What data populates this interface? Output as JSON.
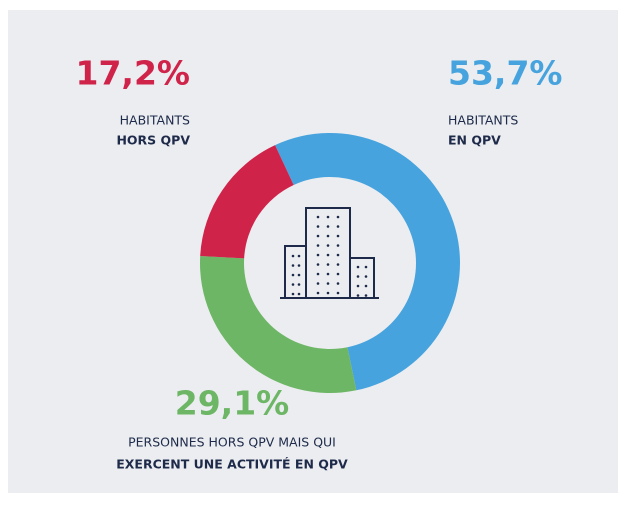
{
  "chart_data": {
    "type": "donut",
    "categories": [
      [
        "HABITANTS",
        "EN QPV"
      ],
      [
        "PERSONNES HORS QPV MAIS QUI",
        "EXERCENT UNE ACTIVITÉ EN QPV"
      ],
      [
        "HABITANTS",
        "HORS QPV"
      ]
    ],
    "values": [
      53.7,
      29.1,
      17.2
    ],
    "value_labels": [
      "53,7%",
      "29,1%",
      "17,2%"
    ],
    "colors": [
      "#47a3dd",
      "#6db665",
      "#d0234a"
    ]
  }
}
